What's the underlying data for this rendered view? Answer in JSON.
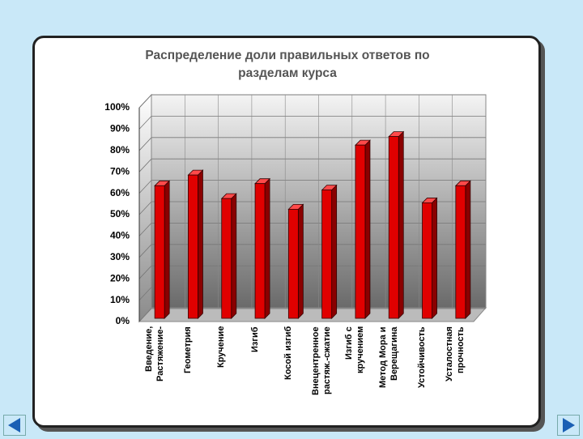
{
  "chart_data": {
    "type": "bar3d",
    "title": "Распределение доли правильных ответов по\nразделам курса",
    "categories": [
      "Введение,\nРастяжение-",
      "Геометрия",
      "Кручение",
      "Изгиб",
      "Косой изгиб",
      "Внецентренное\nрастяж.-сжатие",
      "Изгиб с\nкручением",
      "Метод Мора и\nВерещагина",
      "Устойчивость",
      "Усталостная\nпрочность"
    ],
    "values": [
      62,
      67,
      56,
      63,
      51,
      60,
      81,
      85,
      54,
      62
    ],
    "color": "#e00000",
    "ylim": [
      0,
      100
    ],
    "yticks": [
      {
        "value": 0,
        "label": "0%"
      },
      {
        "value": 10,
        "label": "10%"
      },
      {
        "value": 20,
        "label": "20%"
      },
      {
        "value": 30,
        "label": "30%"
      },
      {
        "value": 40,
        "label": "40%"
      },
      {
        "value": 50,
        "label": "50%"
      },
      {
        "value": 60,
        "label": "60%"
      },
      {
        "value": 70,
        "label": "70%"
      },
      {
        "value": 80,
        "label": "80%"
      },
      {
        "value": 90,
        "label": "90%"
      },
      {
        "value": 100,
        "label": "100%"
      }
    ],
    "grid": true
  }
}
